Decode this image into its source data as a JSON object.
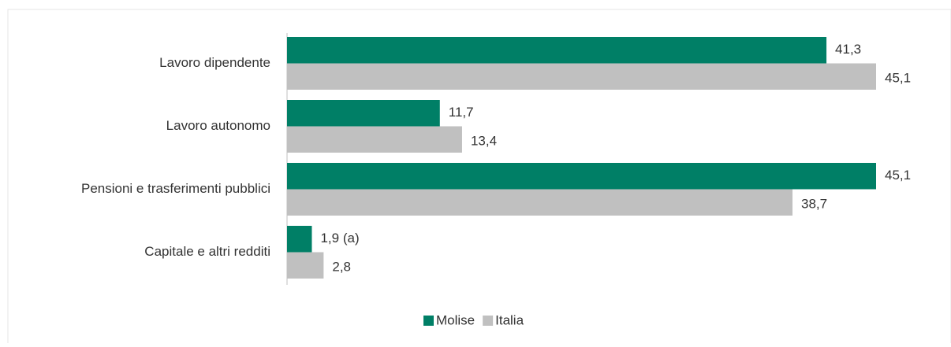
{
  "chart_data": {
    "type": "hbar",
    "categories": [
      "Lavoro dipendente",
      "Lavoro autonomo",
      "Pensioni e trasferimenti pubblici",
      "Capitale e altri redditi"
    ],
    "series": [
      {
        "name": "Molise",
        "color": "#007f66",
        "values": [
          41.3,
          11.7,
          45.1,
          1.9
        ],
        "value_labels": [
          "41,3",
          "11,7",
          "45,1",
          "1,9 (a)"
        ]
      },
      {
        "name": "Italia",
        "color": "#c0c0c0",
        "values": [
          45.1,
          13.4,
          38.7,
          2.8
        ],
        "value_labels": [
          "45,1",
          "13,4",
          "38,7",
          "2,8"
        ]
      }
    ],
    "legend": "bottom"
  }
}
